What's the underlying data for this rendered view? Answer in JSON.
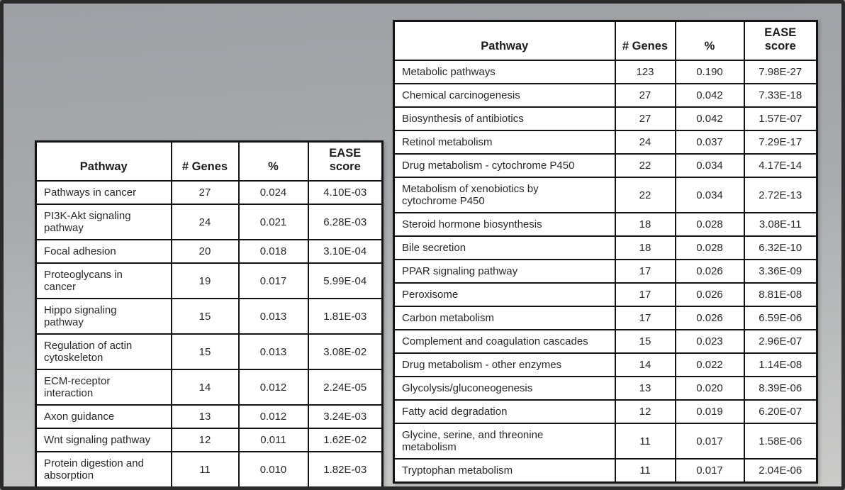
{
  "page": {
    "frame_border_color": "#2b2b2b",
    "background_gradient_top": "#9da0a4",
    "background_gradient_bottom": "#cbccca",
    "table_grid_color": "#141414",
    "table_cell_background": "#ffffff",
    "table_text_color": "#28282a"
  },
  "tables": [
    {
      "name": "signaling-cancer-pathways",
      "headers": [
        "Pathway",
        "# Genes",
        "%",
        "EASE\nscore"
      ],
      "rows": [
        [
          "Pathways in cancer",
          "27",
          "0.024",
          "4.10E-03"
        ],
        [
          "PI3K-Akt signaling\npathway",
          "24",
          "0.021",
          "6.28E-03"
        ],
        [
          "Focal adhesion",
          "20",
          "0.018",
          "3.10E-04"
        ],
        [
          "Proteoglycans in\ncancer",
          "19",
          "0.017",
          "5.99E-04"
        ],
        [
          "Hippo signaling\npathway",
          "15",
          "0.013",
          "1.81E-03"
        ],
        [
          "Regulation of actin\ncytoskeleton",
          "15",
          "0.013",
          "3.08E-02"
        ],
        [
          "ECM-receptor\ninteraction",
          "14",
          "0.012",
          "2.24E-05"
        ],
        [
          "Axon guidance",
          "13",
          "0.012",
          "3.24E-03"
        ],
        [
          "Wnt signaling pathway",
          "12",
          "0.011",
          "1.62E-02"
        ],
        [
          "Protein digestion and\nabsorption",
          "11",
          "0.010",
          "1.82E-03"
        ]
      ]
    },
    {
      "name": "metabolic-pathways",
      "headers": [
        "Pathway",
        "# Genes",
        "%",
        "EASE\nscore"
      ],
      "rows": [
        [
          "Metabolic pathways",
          "123",
          "0.190",
          "7.98E-27"
        ],
        [
          "Chemical carcinogenesis",
          "27",
          "0.042",
          "7.33E-18"
        ],
        [
          "Biosynthesis of antibiotics",
          "27",
          "0.042",
          "1.57E-07"
        ],
        [
          "Retinol metabolism",
          "24",
          "0.037",
          "7.29E-17"
        ],
        [
          "Drug metabolism - cytochrome P450",
          "22",
          "0.034",
          "4.17E-14"
        ],
        [
          "Metabolism of xenobiotics by\ncytochrome P450",
          "22",
          "0.034",
          "2.72E-13"
        ],
        [
          "Steroid hormone biosynthesis",
          "18",
          "0.028",
          "3.08E-11"
        ],
        [
          "Bile secretion",
          "18",
          "0.028",
          "6.32E-10"
        ],
        [
          "PPAR signaling pathway",
          "17",
          "0.026",
          "3.36E-09"
        ],
        [
          "Peroxisome",
          "17",
          "0.026",
          "8.81E-08"
        ],
        [
          "Carbon metabolism",
          "17",
          "0.026",
          "6.59E-06"
        ],
        [
          "Complement and coagulation cascades",
          "15",
          "0.023",
          "2.96E-07"
        ],
        [
          "Drug metabolism - other enzymes",
          "14",
          "0.022",
          "1.14E-08"
        ],
        [
          "Glycolysis/gluconeogenesis",
          "13",
          "0.020",
          "8.39E-06"
        ],
        [
          "Fatty acid degradation",
          "12",
          "0.019",
          "6.20E-07"
        ],
        [
          "Glycine, serine, and threonine\nmetabolism",
          "11",
          "0.017",
          "1.58E-06"
        ],
        [
          "Tryptophan metabolism",
          "11",
          "0.017",
          "2.04E-06"
        ]
      ]
    }
  ]
}
